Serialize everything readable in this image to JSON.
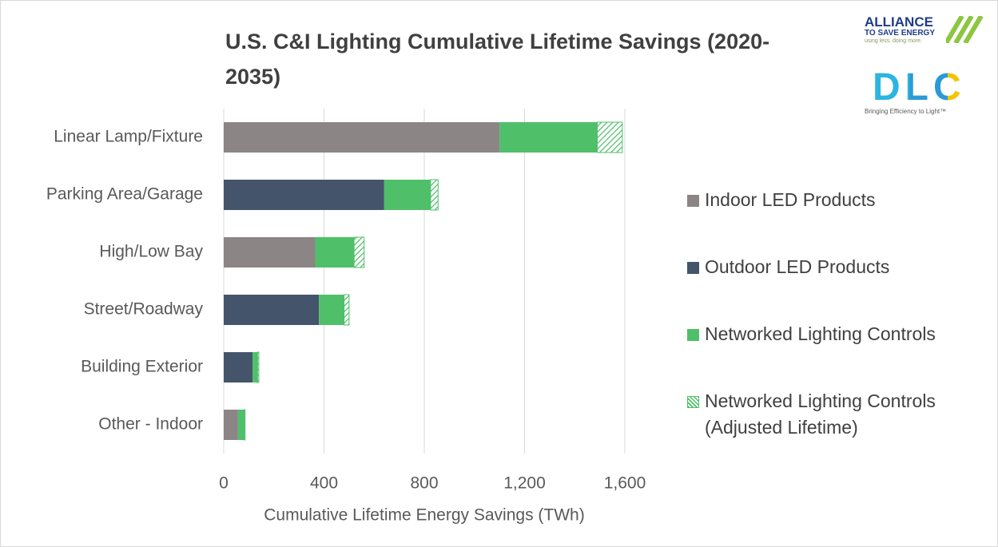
{
  "chart_data": {
    "type": "stacked-barh",
    "title": "U.S. C&I Lighting Cumulative Lifetime Savings (2020-2035)",
    "x_label": "Cumulative Lifetime Energy Savings (TWh)",
    "categories": [
      "Linear Lamp/Fixture",
      "Parking Area/Garage",
      "High/Low Bay",
      "Street/Roadway",
      "Building Exterior",
      "Other - Indoor"
    ],
    "series": [
      {
        "name": "Indoor LED Products",
        "color": "#8c8585",
        "values": [
          1100,
          0,
          365,
          0,
          0,
          57
        ]
      },
      {
        "name": "Outdoor LED Products",
        "color": "#44546a",
        "values": [
          0,
          640,
          0,
          380,
          115,
          0
        ]
      },
      {
        "name": "Networked Lighting Controls",
        "color": "#4fbf6a",
        "values": [
          390,
          185,
          155,
          100,
          20,
          25
        ]
      },
      {
        "name": "Networked Lighting Controls (Adjusted Lifetime)",
        "color": "#4fbf6a",
        "hatch": true,
        "values": [
          100,
          30,
          40,
          20,
          5,
          3
        ]
      }
    ],
    "xlim": [
      0,
      1600
    ],
    "xticks": [
      0,
      400,
      800,
      {
        "value": 1200,
        "label": "1,200"
      },
      {
        "value": 1600,
        "label": "1,600"
      }
    ],
    "grid": true,
    "legend": "right"
  },
  "logos": {
    "alliance": [
      "ALLIANCE",
      "TO SAVE ENERGY",
      "using less. doing more."
    ],
    "dlc": [
      "DLC",
      "Bringing Efficiency to Light™"
    ]
  }
}
